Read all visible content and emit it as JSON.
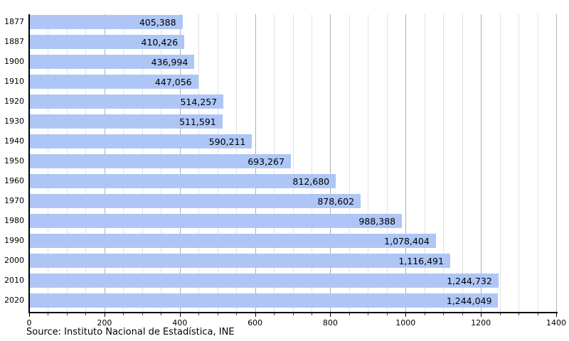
{
  "chart_data": {
    "type": "bar",
    "orientation": "horizontal",
    "title": "",
    "xlabel": "",
    "ylabel": "",
    "categories": [
      "1877",
      "1887",
      "1900",
      "1910",
      "1920",
      "1930",
      "1940",
      "1950",
      "1960",
      "1970",
      "1980",
      "1990",
      "2000",
      "2010",
      "2020"
    ],
    "values": [
      405388,
      410426,
      436994,
      447056,
      514257,
      511591,
      590211,
      693267,
      812680,
      878602,
      988388,
      1078404,
      1116491,
      1244732,
      1244049
    ],
    "value_labels": [
      "405,388",
      "410,426",
      "436,994",
      "447,056",
      "514,257",
      "511,591",
      "590,211",
      "693,267",
      "812,680",
      "878,602",
      "988,388",
      "1,078,404",
      "1,116,491",
      "1,244,732",
      "1,244,049"
    ],
    "xlim_thousands": [
      0,
      1400
    ],
    "xtick_labels": [
      "0",
      "200",
      "400",
      "600",
      "800",
      "1000",
      "1200",
      "1400"
    ],
    "xtick_values_thousands": [
      0,
      200,
      400,
      600,
      800,
      1000,
      1200,
      1400
    ],
    "minor_tick_step_thousands": 50,
    "major_tick_step_thousands": 200,
    "grid": "vertical",
    "legend_position": "none",
    "source": "Source: Instituto Nacional de Estadística, INE",
    "colors": {
      "bar_fill": "#aec6f5",
      "axis_line": "#000000",
      "major_gridline": "#b0b0b0",
      "minor_gridline": "#e2e2e2",
      "text": "#000000"
    }
  }
}
